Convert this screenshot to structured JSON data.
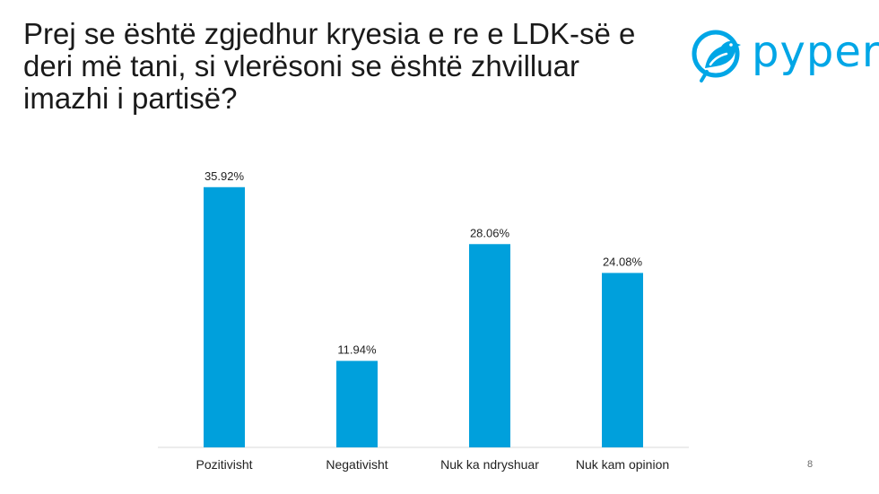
{
  "slide": {
    "title": "Prej se është zgjedhur kryesia e re e LDK-së e deri më tani, si vlerësoni se është zhvilluar imazhi i partisë?",
    "page_number": "8"
  },
  "logo": {
    "text": "pyper",
    "icon": "bird-logo-icon",
    "color": "#00a6e6"
  },
  "colors": {
    "bar": "#00a0dc",
    "axis": "#d9d9d9"
  },
  "chart_data": {
    "type": "bar",
    "title": "",
    "xlabel": "",
    "ylabel": "",
    "ylim": [
      0,
      40
    ],
    "grid": false,
    "legend": "none",
    "categories": [
      "Pozitivisht",
      "Negativisht",
      "Nuk ka ndryshuar",
      "Nuk kam opinion"
    ],
    "values": [
      35.92,
      11.94,
      28.06,
      24.08
    ],
    "value_labels": [
      "35.92%",
      "11.94%",
      "28.06%",
      "24.08%"
    ]
  }
}
